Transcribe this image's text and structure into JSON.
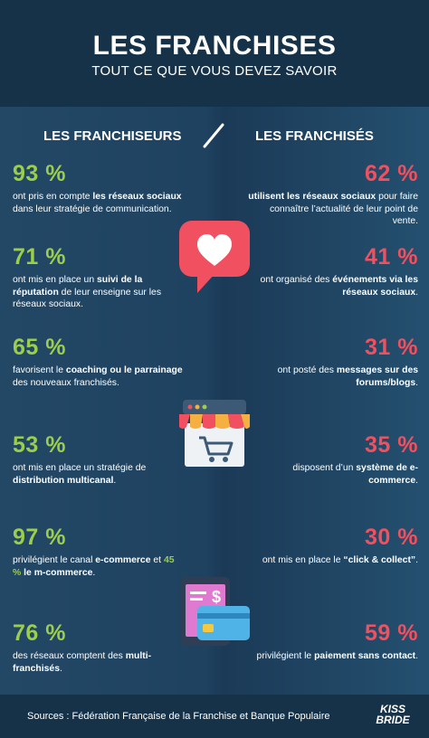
{
  "header": {
    "title": "LES FRANCHISES",
    "subtitle": "TOUT CE QUE VOUS DEVEZ SAVOIR"
  },
  "columns": {
    "left_title": "LES FRANCHISEURS",
    "right_title": "LES FRANCHISÉS"
  },
  "left_stats": [
    {
      "pct": "93 %",
      "t1": "ont pris en compte ",
      "b1": "les réseaux sociaux",
      "t2": " dans leur stratégie de communication."
    },
    {
      "pct": "71 %",
      "t1": "ont mis en place un ",
      "b1": "suivi de la réputation",
      "t2": " de leur enseigne sur les réseaux sociaux."
    },
    {
      "pct": "65 %",
      "t1": "favorisent le ",
      "b1": "coaching ou le parrainage",
      "t2": " des nouveaux franchisés."
    },
    {
      "pct": "53 %",
      "t1": "ont mis en place un stratégie de ",
      "b1": "distribution multicanal",
      "t2": "."
    },
    {
      "pct": "97 %",
      "t1": "privilégient le canal ",
      "b1": "e-commerce",
      "t2": " et ",
      "g1": "45 %",
      "b2": " le m-commerce",
      "t3": "."
    },
    {
      "pct": "76 %",
      "t1": "des réseaux comptent des ",
      "b1": "multi-franchisés",
      "t2": "."
    }
  ],
  "right_stats": [
    {
      "pct": "62 %",
      "b1": "utilisent les réseaux sociaux",
      "t1": " pour faire connaître l’actualité de leur point de vente."
    },
    {
      "pct": "41 %",
      "t0": "ont organisé des ",
      "b1": "événements via les réseaux sociaux",
      "t1": "."
    },
    {
      "pct": "31 %",
      "t0": "ont posté des ",
      "b1": "messages sur des forums/blogs",
      "t1": "."
    },
    {
      "pct": "35 %",
      "t0": "disposent d’un ",
      "b1": "système de e-commerce",
      "t1": "."
    },
    {
      "pct": "30 %",
      "t0": "ont mis en place le ",
      "b1": "“click & collect”",
      "t1": "."
    },
    {
      "pct": "59 %",
      "t0": "privilégient le ",
      "b1": "paiement sans contact",
      "t1": "."
    }
  ],
  "footer": {
    "sources": "Sources : Fédération Française de la Franchise et Banque Populaire",
    "logo_line1": "KISS",
    "logo_line2": "BRIDE"
  },
  "icons": [
    "heart-like-icon",
    "shop-cart-icon",
    "phone-card-payment-icon"
  ],
  "colors": {
    "green": "#9bce4a",
    "red": "#f0505f",
    "background": "#1d3a52"
  }
}
